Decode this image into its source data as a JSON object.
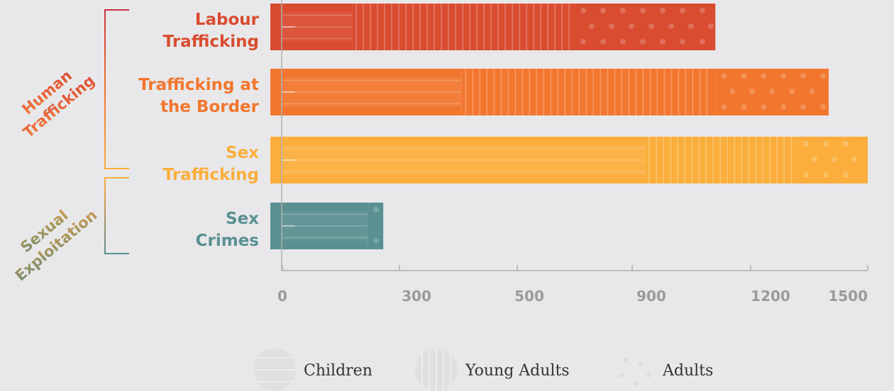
{
  "chart_data": {
    "type": "bar",
    "orientation": "horizontal",
    "stacked": true,
    "categories": [
      "Labour Trafficking",
      "Trafficking at the Border",
      "Sex Trafficking",
      "Sex Crimes"
    ],
    "category_labels": [
      [
        "Labour",
        "Trafficking"
      ],
      [
        "Trafficking at",
        "the Border"
      ],
      [
        "Sex",
        "Trafficking"
      ],
      [
        "Sex",
        "Crimes"
      ]
    ],
    "series": [
      {
        "name": "Children",
        "values": [
          180,
          460,
          930,
          220
        ]
      },
      {
        "name": "Young Adults",
        "values": [
          570,
          650,
          390,
          0
        ]
      },
      {
        "name": "Adults",
        "values": [
          360,
          290,
          180,
          40
        ]
      }
    ],
    "totals": [
      1110,
      1400,
      1500,
      260
    ],
    "x_ticks": [
      "0",
      "300",
      "500",
      "900",
      "1200",
      "1500"
    ],
    "xlim": [
      0,
      1500
    ],
    "grid": false,
    "groups": [
      {
        "label": [
          "Human",
          "Trafficking"
        ],
        "categories": [
          "Labour Trafficking",
          "Trafficking at the Border",
          "Sex Trafficking"
        ]
      },
      {
        "label": [
          "Sexual",
          "Exploitation"
        ],
        "categories": [
          "Sex Crimes"
        ]
      }
    ],
    "legend": {
      "placement": "bottom",
      "entries": [
        "Children",
        "Young Adults",
        "Adults"
      ]
    },
    "colors": {
      "bars": [
        "#d94c30",
        "#f2762e",
        "#fbae3c",
        "#5a9091"
      ],
      "groups": [
        "#d94c30",
        "#6b8a73"
      ],
      "axis": "#b0b0b0",
      "ticks": "#9b9b9b"
    }
  }
}
